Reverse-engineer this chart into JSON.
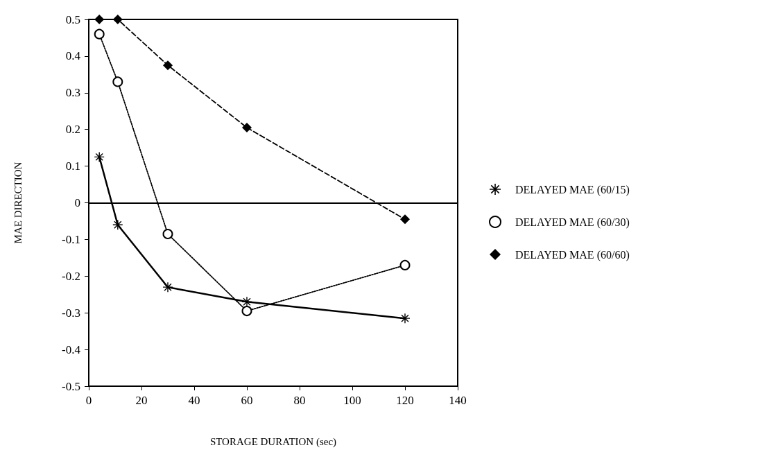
{
  "chart_data": {
    "type": "line",
    "xlabel": "STORAGE DURATION (sec)",
    "ylabel": "MAE DIRECTION",
    "xlim": [
      0,
      140
    ],
    "xticks": [
      0,
      20,
      40,
      60,
      80,
      100,
      120,
      140
    ],
    "ylim": [
      -0.5,
      0.5
    ],
    "yticks": [
      -0.5,
      -0.4,
      -0.3,
      -0.2,
      -0.1,
      0,
      0.1,
      0.2,
      0.3,
      0.4,
      0.5
    ],
    "x": [
      4,
      11,
      30,
      60,
      120
    ],
    "series": [
      {
        "name": "DELAYED MAE (60/15)",
        "color": "#000000",
        "marker": "star",
        "line_style": "solid",
        "values": [
          0.125,
          -0.06,
          -0.23,
          -0.27,
          -0.315
        ]
      },
      {
        "name": "DELAYED MAE (60/30)",
        "color": "#000000",
        "marker": "circle",
        "line_style": "dotted",
        "values": [
          0.46,
          0.33,
          -0.085,
          -0.295,
          -0.17
        ]
      },
      {
        "name": "DELAYED MAE (60/60)",
        "color": "#000000",
        "marker": "diamond",
        "line_style": "dashed",
        "values": [
          0.5,
          0.5,
          0.375,
          0.205,
          -0.045
        ]
      }
    ],
    "ref_lines": [
      {
        "axis": "y",
        "value": 0,
        "color": "#000000",
        "line_style": "solid"
      }
    ],
    "grid": false,
    "legend": "right"
  }
}
